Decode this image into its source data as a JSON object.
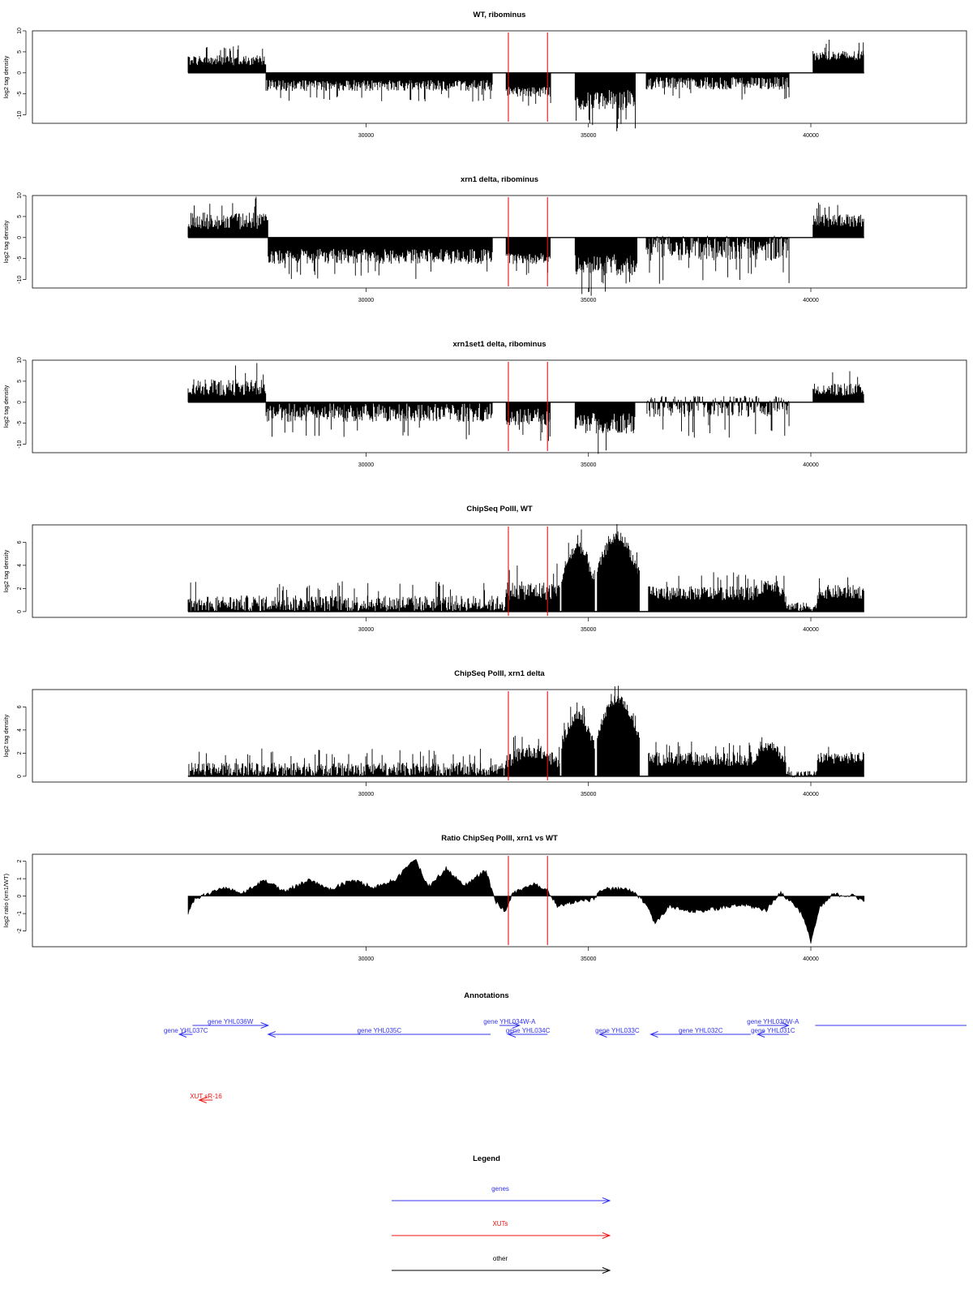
{
  "colors": {
    "gene": "#3333ee",
    "xut": "#ee1111",
    "other": "#000000",
    "marker": "#ee1111",
    "data": "#000000"
  },
  "chart_data": [
    {
      "type": "bar",
      "title": "WT, ribominus",
      "ylabel": "log2 tag density",
      "xlim": [
        22500,
        43500
      ],
      "ylim": [
        -12,
        10
      ],
      "yticks": [
        -10,
        -5,
        0,
        5,
        10
      ],
      "xticks": [
        30000,
        35000,
        40000
      ],
      "markers": [
        33200,
        34080
      ],
      "segments": [
        {
          "from": 26000,
          "to": 27750,
          "level": 3,
          "amp": 1.2
        },
        {
          "from": 27750,
          "to": 32850,
          "level": -3,
          "amp": 1.3
        },
        {
          "from": 33150,
          "to": 34150,
          "level": -4.5,
          "amp": 1.2
        },
        {
          "from": 34700,
          "to": 36050,
          "level": -6.5,
          "amp": 2.5
        },
        {
          "from": 36300,
          "to": 39500,
          "level": -2.5,
          "amp": 1.5
        },
        {
          "from": 40050,
          "to": 41200,
          "level": 4,
          "amp": 1.3
        }
      ]
    },
    {
      "type": "bar",
      "title": "xrn1 delta, ribominus",
      "ylabel": "log2 tag density",
      "xlim": [
        22500,
        43500
      ],
      "ylim": [
        -12,
        10
      ],
      "yticks": [
        -10,
        -5,
        0,
        5,
        10
      ],
      "xticks": [
        30000,
        35000,
        40000
      ],
      "markers": [
        33200,
        34080
      ],
      "segments": [
        {
          "from": 26000,
          "to": 27800,
          "level": 4,
          "amp": 2
        },
        {
          "from": 27800,
          "to": 32850,
          "level": -4.5,
          "amp": 1.8
        },
        {
          "from": 33150,
          "to": 34150,
          "level": -5,
          "amp": 1.3
        },
        {
          "from": 34700,
          "to": 36100,
          "level": -6.5,
          "amp": 2.5
        },
        {
          "from": 36300,
          "to": 39500,
          "level": -2.5,
          "amp": 3
        },
        {
          "from": 40050,
          "to": 41200,
          "level": 4,
          "amp": 1.5
        }
      ]
    },
    {
      "type": "bar",
      "title": "xrn1set1 delta, ribominus",
      "ylabel": "log2 tag density",
      "xlim": [
        22500,
        43500
      ],
      "ylim": [
        -12,
        10
      ],
      "yticks": [
        -10,
        -5,
        0,
        5,
        10
      ],
      "xticks": [
        30000,
        35000,
        40000
      ],
      "markers": [
        33200,
        34080
      ],
      "segments": [
        {
          "from": 26000,
          "to": 27750,
          "level": 3.5,
          "amp": 2
        },
        {
          "from": 27750,
          "to": 32850,
          "level": -2.5,
          "amp": 2.2
        },
        {
          "from": 33150,
          "to": 34150,
          "level": -3.5,
          "amp": 2
        },
        {
          "from": 34700,
          "to": 36050,
          "level": -5,
          "amp": 2.5
        },
        {
          "from": 36300,
          "to": 39500,
          "level": -1,
          "amp": 2.5
        },
        {
          "from": 40050,
          "to": 41200,
          "level": 3,
          "amp": 1.5
        }
      ]
    },
    {
      "type": "bar",
      "title": "ChipSeq PolII, WT",
      "ylabel": "log2 tag density",
      "xlim": [
        22500,
        43500
      ],
      "ylim": [
        -0.5,
        7.5
      ],
      "yticks": [
        0,
        2,
        4,
        6
      ],
      "xticks": [
        30000,
        35000,
        40000
      ],
      "markers": [
        33200,
        34080
      ],
      "segments": [
        {
          "from": 26000,
          "to": 33150,
          "level": 0.7,
          "amp": 0.7
        },
        {
          "from": 33150,
          "to": 34350,
          "level": 1.8,
          "amp": 0.8
        },
        {
          "from": 34400,
          "to": 35150,
          "level": 5.5,
          "amp": 0.6,
          "dome": true
        },
        {
          "from": 35200,
          "to": 36150,
          "level": 6.5,
          "amp": 0.5,
          "dome": true
        },
        {
          "from": 36350,
          "to": 38700,
          "level": 1.6,
          "amp": 0.6
        },
        {
          "from": 38700,
          "to": 39450,
          "level": 2.4,
          "amp": 0.6,
          "dome": true
        },
        {
          "from": 39450,
          "to": 40150,
          "level": 0.4,
          "amp": 0.4
        },
        {
          "from": 40150,
          "to": 41200,
          "level": 1.7,
          "amp": 0.6
        }
      ]
    },
    {
      "type": "bar",
      "title": "ChipSeq PolII, xrn1 delta",
      "ylabel": "log2 tag density",
      "xlim": [
        22500,
        43500
      ],
      "ylim": [
        -0.5,
        7.5
      ],
      "yticks": [
        0,
        2,
        4,
        6
      ],
      "xticks": [
        30000,
        35000,
        40000
      ],
      "markers": [
        33200,
        34080
      ],
      "segments": [
        {
          "from": 26000,
          "to": 33150,
          "level": 0.6,
          "amp": 0.6
        },
        {
          "from": 33150,
          "to": 34350,
          "level": 2.2,
          "amp": 0.6,
          "dome": true
        },
        {
          "from": 34400,
          "to": 35150,
          "level": 5.2,
          "amp": 0.5,
          "dome": true
        },
        {
          "from": 35200,
          "to": 36150,
          "level": 6.7,
          "amp": 0.4,
          "dome": true
        },
        {
          "from": 36350,
          "to": 38700,
          "level": 1.5,
          "amp": 0.6
        },
        {
          "from": 38700,
          "to": 39450,
          "level": 2.6,
          "amp": 0.4,
          "dome": true
        },
        {
          "from": 39450,
          "to": 40150,
          "level": 0.2,
          "amp": 0.3
        },
        {
          "from": 40150,
          "to": 41200,
          "level": 1.6,
          "amp": 0.5
        }
      ]
    },
    {
      "type": "area",
      "title": "Ratio ChipSeq PolII, xrn1 vs WT",
      "ylabel": "log2 ratio (xrn1/WT)",
      "xlim": [
        22500,
        43500
      ],
      "ylim": [
        -2.9,
        2.4
      ],
      "yticks": [
        -2,
        -1,
        0,
        1,
        2
      ],
      "xticks": [
        30000,
        35000,
        40000
      ],
      "markers": [
        33200,
        34080
      ],
      "profile": [
        {
          "x": 26000,
          "y": -1.0
        },
        {
          "x": 26150,
          "y": -0.2
        },
        {
          "x": 26400,
          "y": 0.1
        },
        {
          "x": 26800,
          "y": 0.5
        },
        {
          "x": 27200,
          "y": 0.1
        },
        {
          "x": 27700,
          "y": 0.9
        },
        {
          "x": 28200,
          "y": 0.3
        },
        {
          "x": 28700,
          "y": 0.9
        },
        {
          "x": 29200,
          "y": 0.4
        },
        {
          "x": 29700,
          "y": 0.9
        },
        {
          "x": 30200,
          "y": 0.5
        },
        {
          "x": 30700,
          "y": 1.0
        },
        {
          "x": 31100,
          "y": 2.2
        },
        {
          "x": 31400,
          "y": 0.5
        },
        {
          "x": 31800,
          "y": 1.6
        },
        {
          "x": 32200,
          "y": 0.6
        },
        {
          "x": 32700,
          "y": 1.5
        },
        {
          "x": 32900,
          "y": -0.3
        },
        {
          "x": 33150,
          "y": -0.9
        },
        {
          "x": 33300,
          "y": 0.2
        },
        {
          "x": 33800,
          "y": 0.7
        },
        {
          "x": 34100,
          "y": 0.3
        },
        {
          "x": 34300,
          "y": -0.6
        },
        {
          "x": 34700,
          "y": -0.3
        },
        {
          "x": 35100,
          "y": -0.2
        },
        {
          "x": 35300,
          "y": 0.4
        },
        {
          "x": 35900,
          "y": 0.4
        },
        {
          "x": 36100,
          "y": 0.0
        },
        {
          "x": 36300,
          "y": -0.4
        },
        {
          "x": 36500,
          "y": -1.6
        },
        {
          "x": 36800,
          "y": -0.6
        },
        {
          "x": 37300,
          "y": -0.9
        },
        {
          "x": 37900,
          "y": -0.7
        },
        {
          "x": 38500,
          "y": -0.5
        },
        {
          "x": 39000,
          "y": -0.8
        },
        {
          "x": 39300,
          "y": 0.2
        },
        {
          "x": 39600,
          "y": -0.4
        },
        {
          "x": 39800,
          "y": -1.0
        },
        {
          "x": 40000,
          "y": -2.6
        },
        {
          "x": 40200,
          "y": -0.7
        },
        {
          "x": 40500,
          "y": 0.1
        },
        {
          "x": 41000,
          "y": 0.0
        },
        {
          "x": 41200,
          "y": -0.3
        }
      ]
    }
  ],
  "annotations": {
    "title": "Annotations",
    "genes": [
      {
        "label": "gene YHL037C",
        "from": 25800,
        "to": 26100,
        "dir": "left",
        "row": 1
      },
      {
        "label": "gene YHL036W",
        "from": 26100,
        "to": 27800,
        "dir": "right",
        "row": 0
      },
      {
        "label": "gene YHL035C",
        "from": 27800,
        "to": 32800,
        "dir": "left",
        "row": 1
      },
      {
        "label": "gene YHL034W-A",
        "from": 33000,
        "to": 33450,
        "dir": "right",
        "row": 0
      },
      {
        "label": "gene YHL034C",
        "from": 33200,
        "to": 34080,
        "dir": "left",
        "row": 1
      },
      {
        "label": "gene YHL033C",
        "from": 35250,
        "to": 36050,
        "dir": "left",
        "row": 1
      },
      {
        "label": "gene YHL032C",
        "from": 36400,
        "to": 38650,
        "dir": "left",
        "row": 1
      },
      {
        "label": "gene YHL031C",
        "from": 38800,
        "to": 39500,
        "dir": "left",
        "row": 1
      },
      {
        "label": "gene YHL030W-A",
        "from": 38800,
        "to": 39500,
        "dir": "right",
        "row": 0
      },
      {
        "label": "",
        "from": 40100,
        "to": 43500,
        "dir": "none",
        "row": 0
      }
    ],
    "xuts": [
      {
        "label": "XUT sR-16",
        "from": 26250,
        "to": 26550,
        "dir": "left"
      }
    ]
  },
  "legend": {
    "title": "Legend",
    "items": [
      {
        "label": "genes",
        "kind": "gene"
      },
      {
        "label": "XUTs",
        "kind": "xut"
      },
      {
        "label": "other",
        "kind": "other"
      }
    ]
  }
}
